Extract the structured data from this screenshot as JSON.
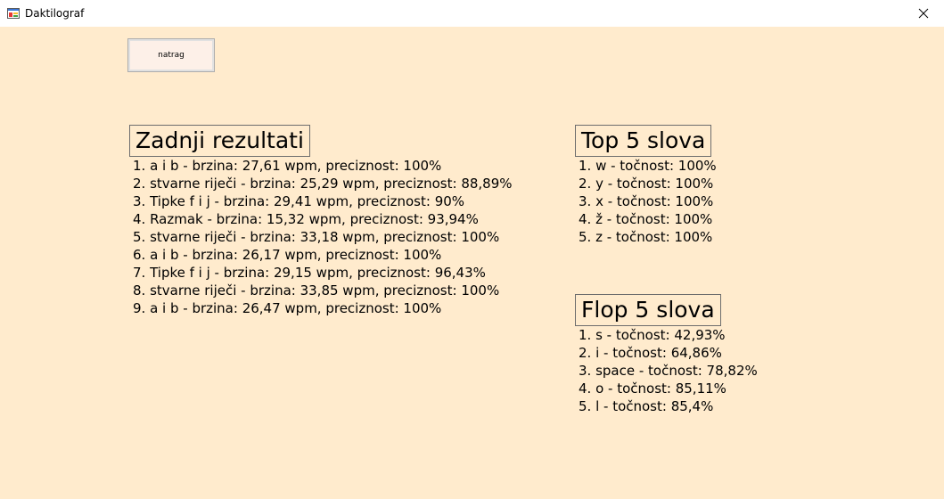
{
  "window": {
    "title": "Daktilograf"
  },
  "toolbar": {
    "back_label": "natrag"
  },
  "recent": {
    "heading": "Zadnji rezultati",
    "items": [
      "1. a i b - brzina: 27,61 wpm, preciznost: 100%",
      "2. stvarne riječi - brzina: 25,29 wpm, preciznost: 88,89%",
      "3. Tipke f i j - brzina: 29,41 wpm, preciznost: 90%",
      "4. Razmak - brzina: 15,32 wpm, preciznost: 93,94%",
      "5. stvarne riječi - brzina: 33,18 wpm, preciznost: 100%",
      "6. a i b - brzina: 26,17 wpm, preciznost: 100%",
      "7. Tipke f i j - brzina: 29,15 wpm, preciznost: 96,43%",
      "8. stvarne riječi - brzina: 33,85 wpm, preciznost: 100%",
      "9. a i b - brzina: 26,47 wpm, preciznost: 100%"
    ]
  },
  "top5": {
    "heading": "Top 5 slova",
    "items": [
      "1. w - točnost: 100%",
      "2. y - točnost: 100%",
      "3. x - točnost: 100%",
      "4. ž - točnost: 100%",
      "5. z - točnost: 100%"
    ]
  },
  "flop5": {
    "heading": "Flop 5 slova",
    "items": [
      "1. s - točnost: 42,93%",
      "2. i - točnost: 64,86%",
      "3. space - točnost: 78,82%",
      "4. o - točnost: 85,11%",
      "5. l - točnost: 85,4%"
    ]
  },
  "colors": {
    "background": "#ffebcd",
    "titlebar": "#ffffff"
  },
  "icons": {
    "app": "app-icon",
    "close": "close-icon"
  }
}
